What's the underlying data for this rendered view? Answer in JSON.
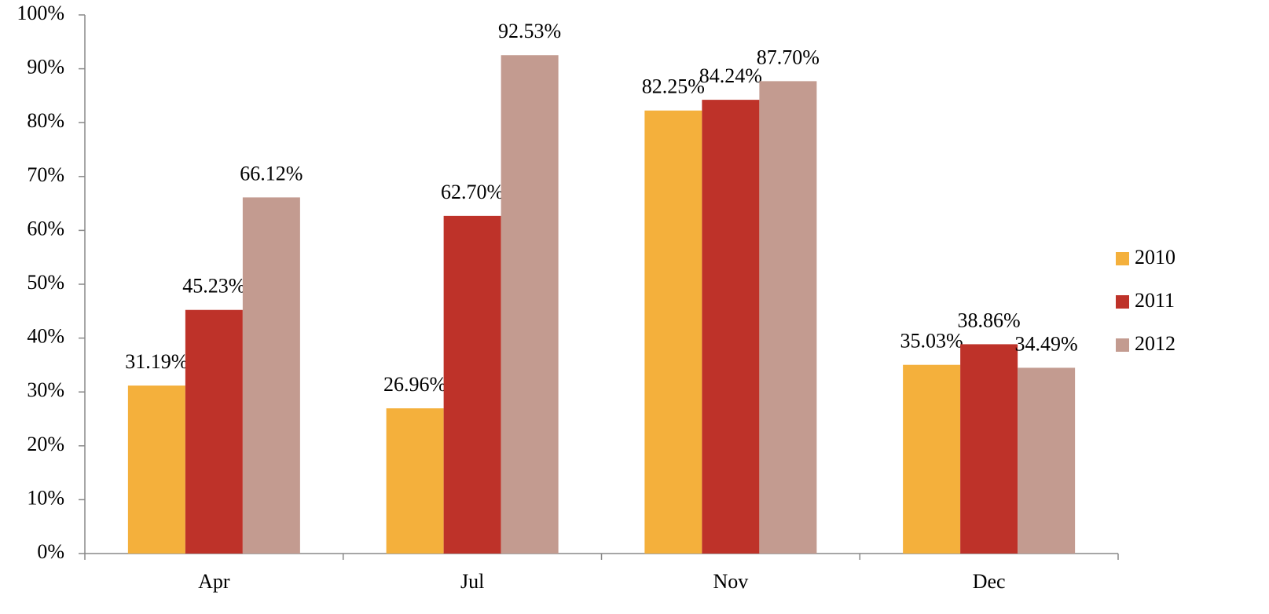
{
  "chart_data": {
    "type": "bar",
    "categories": [
      "Apr",
      "Jul",
      "Nov",
      "Dec"
    ],
    "series": [
      {
        "name": "2010",
        "color": "#f4b03c",
        "values": [
          31.19,
          26.96,
          82.25,
          35.03
        ],
        "value_labels": [
          "31.19%",
          "26.96%",
          "82.25%",
          "35.03%"
        ]
      },
      {
        "name": "2011",
        "color": "#be3229",
        "values": [
          45.23,
          62.7,
          84.24,
          38.86
        ],
        "value_labels": [
          "45.23%",
          "62.70%",
          "84.24%",
          "38.86%"
        ]
      },
      {
        "name": "2012",
        "color": "#c39b90",
        "values": [
          66.12,
          92.53,
          87.7,
          34.49
        ],
        "value_labels": [
          "66.12%",
          "92.53%",
          "87.70%",
          "34.49%"
        ]
      }
    ],
    "ylim": [
      0,
      100
    ],
    "yticks": [
      {
        "value": 0,
        "label": "0%"
      },
      {
        "value": 10,
        "label": "10%"
      },
      {
        "value": 20,
        "label": "20%"
      },
      {
        "value": 30,
        "label": "30%"
      },
      {
        "value": 40,
        "label": "40%"
      },
      {
        "value": 50,
        "label": "50%"
      },
      {
        "value": 60,
        "label": "60%"
      },
      {
        "value": 70,
        "label": "70%"
      },
      {
        "value": 80,
        "label": "80%"
      },
      {
        "value": 90,
        "label": "90%"
      },
      {
        "value": 100,
        "label": "100%"
      }
    ],
    "legend": "right"
  }
}
